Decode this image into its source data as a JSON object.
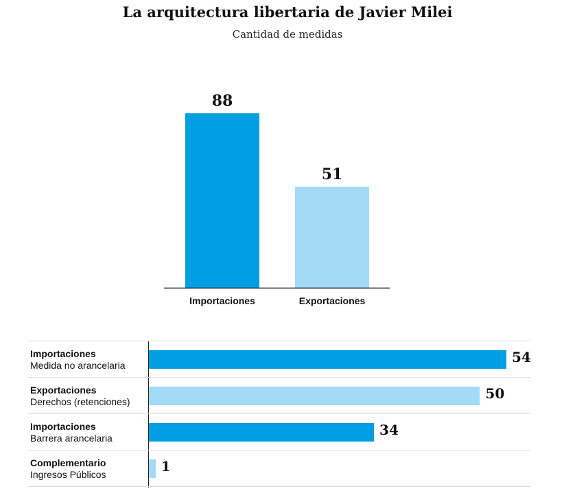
{
  "title": "La arquitectura libertaria de Javier Milei",
  "subtitle": "Cantidad de medidas",
  "colors": {
    "dark": "#009fe3",
    "light": "#a3dbf7"
  },
  "chart_data": [
    {
      "type": "bar",
      "title": "La arquitectura libertaria de Javier Milei",
      "subtitle": "Cantidad de medidas",
      "categories": [
        "Importaciones",
        "Exportaciones"
      ],
      "values": [
        88,
        51
      ],
      "colors": [
        "#009fe3",
        "#a3dbf7"
      ],
      "ylim": [
        0,
        88
      ],
      "grid": false
    },
    {
      "type": "bar",
      "orientation": "horizontal",
      "categories": [
        {
          "group": "Importaciones",
          "detail": "Medida no arancelaria"
        },
        {
          "group": "Exportaciones",
          "detail": "Derechos (retenciones)"
        },
        {
          "group": "Importaciones",
          "detail": "Barrera arancelaria"
        },
        {
          "group": "Complementario",
          "detail": "Ingresos Públicos"
        }
      ],
      "values": [
        54,
        50,
        34,
        1
      ],
      "colors": [
        "#009fe3",
        "#a3dbf7",
        "#009fe3",
        "#a3dbf7"
      ],
      "xlim": [
        0,
        54
      ],
      "grid": false
    }
  ]
}
